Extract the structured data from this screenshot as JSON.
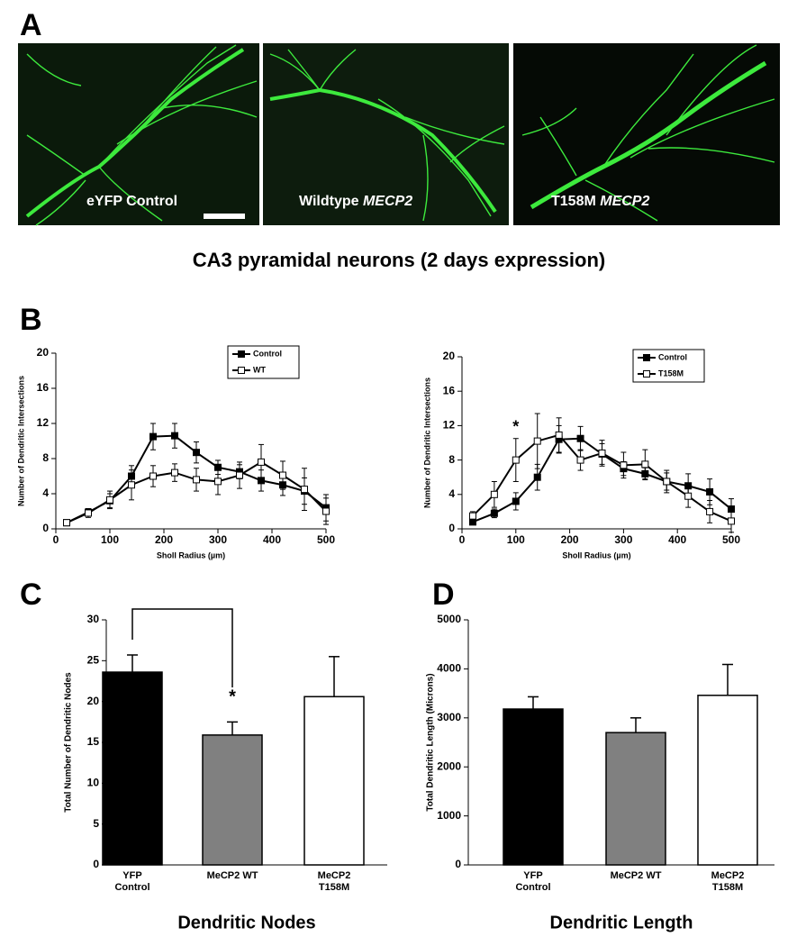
{
  "panel_labels": [
    "A",
    "B",
    "C",
    "D"
  ],
  "panel_a": {
    "images": [
      {
        "label": "eYFP Control"
      },
      {
        "label": "Wildtype ",
        "label_italic": "MECP2"
      },
      {
        "label": "T158M ",
        "label_italic": "MECP2"
      }
    ],
    "caption": "CA3 pyramidal neurons (2 days expression)"
  },
  "chart_data": [
    {
      "type": "line",
      "x_label": "Sholl Radius (µm)",
      "y_label": "Number of Dendritic Intersections",
      "x": [
        20,
        60,
        100,
        140,
        180,
        220,
        260,
        300,
        340,
        380,
        420,
        460,
        500
      ],
      "xlim": [
        0,
        500
      ],
      "xticks": [
        0,
        100,
        200,
        300,
        400,
        500
      ],
      "ylim": [
        0,
        20
      ],
      "yticks": [
        0,
        4,
        8,
        12,
        16,
        20
      ],
      "legend": "upper right",
      "series": [
        {
          "name": "Control",
          "color": "#000000",
          "marker_fill": "#000000",
          "values": [
            0.7,
            1.9,
            3.2,
            6.0,
            10.5,
            10.6,
            8.7,
            7.0,
            6.5,
            5.5,
            5.0,
            4.3,
            2.4
          ],
          "errors": [
            0.2,
            0.4,
            0.8,
            1.2,
            1.5,
            1.4,
            1.2,
            0.8,
            0.8,
            1.2,
            1.2,
            1.5,
            1.5
          ]
        },
        {
          "name": "WT",
          "color": "#000000",
          "marker_fill": "#ffffff",
          "values": [
            0.7,
            1.8,
            3.3,
            5.0,
            6.0,
            6.4,
            5.6,
            5.4,
            6.1,
            7.6,
            6.1,
            4.5,
            2.0
          ],
          "errors": [
            0.2,
            0.5,
            1.0,
            1.7,
            1.2,
            1.0,
            1.3,
            1.5,
            1.5,
            2.0,
            1.6,
            2.4,
            1.5
          ]
        }
      ]
    },
    {
      "type": "line",
      "x_label": "Sholl Radius (µm)",
      "y_label": "Number of Dendritic Intersections",
      "x": [
        20,
        60,
        100,
        140,
        180,
        220,
        260,
        300,
        340,
        380,
        420,
        460,
        500
      ],
      "xlim": [
        0,
        500
      ],
      "xticks": [
        0,
        100,
        200,
        300,
        400,
        500
      ],
      "ylim": [
        0,
        20
      ],
      "yticks": [
        0,
        4,
        8,
        12,
        16,
        20
      ],
      "legend": "upper right",
      "annotation": "*",
      "series": [
        {
          "name": "Control",
          "color": "#000000",
          "marker_fill": "#000000",
          "values": [
            0.8,
            1.8,
            3.2,
            6.0,
            10.4,
            10.5,
            8.7,
            7.0,
            6.4,
            5.5,
            5.0,
            4.3,
            2.3
          ],
          "errors": [
            0.3,
            0.5,
            1.0,
            1.5,
            1.6,
            1.4,
            1.2,
            0.8,
            0.7,
            1.3,
            1.4,
            1.5,
            1.2
          ]
        },
        {
          "name": "T158M",
          "color": "#000000",
          "marker_fill": "#ffffff",
          "values": [
            1.5,
            4.0,
            8.0,
            10.2,
            10.9,
            8.0,
            8.8,
            7.4,
            7.5,
            5.5,
            3.8,
            2.0,
            0.9
          ],
          "errors": [
            0.5,
            1.5,
            2.5,
            3.2,
            2.0,
            1.2,
            1.5,
            1.5,
            1.7,
            1.0,
            1.3,
            1.3,
            1.3
          ]
        }
      ]
    },
    {
      "type": "bar",
      "title": "Dendritic Nodes",
      "y_label": "Total Number of Dendritic Nodes",
      "categories": [
        "YFP Control",
        "MeCP2 WT",
        "MeCP2 T158M"
      ],
      "values": [
        23.6,
        15.9,
        20.6
      ],
      "errors": [
        2.1,
        1.6,
        4.9
      ],
      "colors": [
        "#000000",
        "#808080",
        "#ffffff"
      ],
      "ylim": [
        0,
        30
      ],
      "yticks": [
        0,
        5,
        10,
        15,
        20,
        25,
        30
      ],
      "annotation": "*"
    },
    {
      "type": "bar",
      "title": "Dendritic Length",
      "y_label": "Total Dendritic Length (Microns)",
      "categories": [
        "YFP Control",
        "MeCP2 WT",
        "MeCP2 T158M"
      ],
      "values": [
        3180,
        2700,
        3460
      ],
      "errors": [
        250,
        300,
        630
      ],
      "colors": [
        "#000000",
        "#808080",
        "#ffffff"
      ],
      "ylim": [
        0,
        5000
      ],
      "yticks": [
        0,
        1000,
        2000,
        3000,
        4000,
        5000
      ]
    }
  ]
}
